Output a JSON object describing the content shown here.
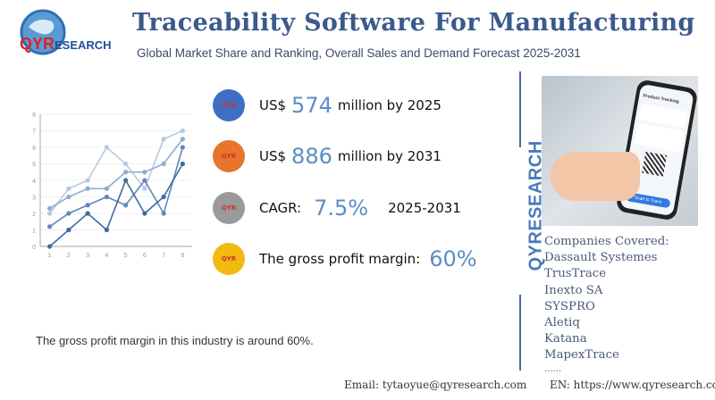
{
  "brand": {
    "logo_text": "QYRESEARCH",
    "vertical_text": "QYRESEARCH"
  },
  "header": {
    "title": "Traceability Software For Manufacturing",
    "subtitle": "Global Market Share and Ranking, Overall Sales and Demand Forecast 2025-2031"
  },
  "stats": [
    {
      "prefix": "US$",
      "value": "574",
      "suffix": "million by 2025",
      "icon_color": "#3e6fc4"
    },
    {
      "prefix": "US$",
      "value": "886",
      "suffix": "million by 2031",
      "icon_color": "#e8742e"
    },
    {
      "prefix": "CAGR:",
      "value": "7.5%",
      "suffix": "2025-2031",
      "icon_color": "#9a9a9a"
    },
    {
      "prefix": "The gross profit margin:",
      "value": "60%",
      "suffix": "",
      "icon_color": "#f2b90f"
    }
  ],
  "note": "The gross profit margin in this industry is around 60%.",
  "photo": {
    "screen_title": "Product Tracking",
    "button": "Scan to Trace"
  },
  "companies": {
    "heading": "Companies Covered:",
    "items": [
      "Dassault Systemes",
      "TrusTrace",
      "Inexto SA",
      "SYSPRO",
      "Aletiq",
      "Katana",
      "MapexTrace",
      "......"
    ]
  },
  "footer": {
    "email": "Email:  tytaoyue@qyresearch.com",
    "website": "EN: https://www.qyresearch.com"
  },
  "chart_data": {
    "type": "line",
    "x": [
      1,
      2,
      3,
      4,
      5,
      6,
      7,
      8
    ],
    "xlim": [
      1,
      8
    ],
    "ylim": [
      0,
      8
    ],
    "yticks": [
      0,
      1,
      2,
      3,
      4,
      5,
      6,
      7,
      8
    ],
    "grid": true,
    "series": [
      {
        "values": [
          2,
          3.5,
          4,
          6,
          5,
          3.5,
          6.5,
          7
        ],
        "color": "#b7c9e2"
      },
      {
        "values": [
          2.3,
          3,
          3.5,
          3.5,
          4.5,
          4.5,
          5,
          6.5
        ],
        "color": "#8eaad4"
      },
      {
        "values": [
          1.2,
          2,
          2.5,
          3,
          2.5,
          4,
          2,
          6
        ],
        "color": "#5f88bd"
      },
      {
        "values": [
          0,
          1,
          2,
          1,
          4,
          2,
          3,
          5
        ],
        "color": "#3f6a9f"
      }
    ]
  }
}
